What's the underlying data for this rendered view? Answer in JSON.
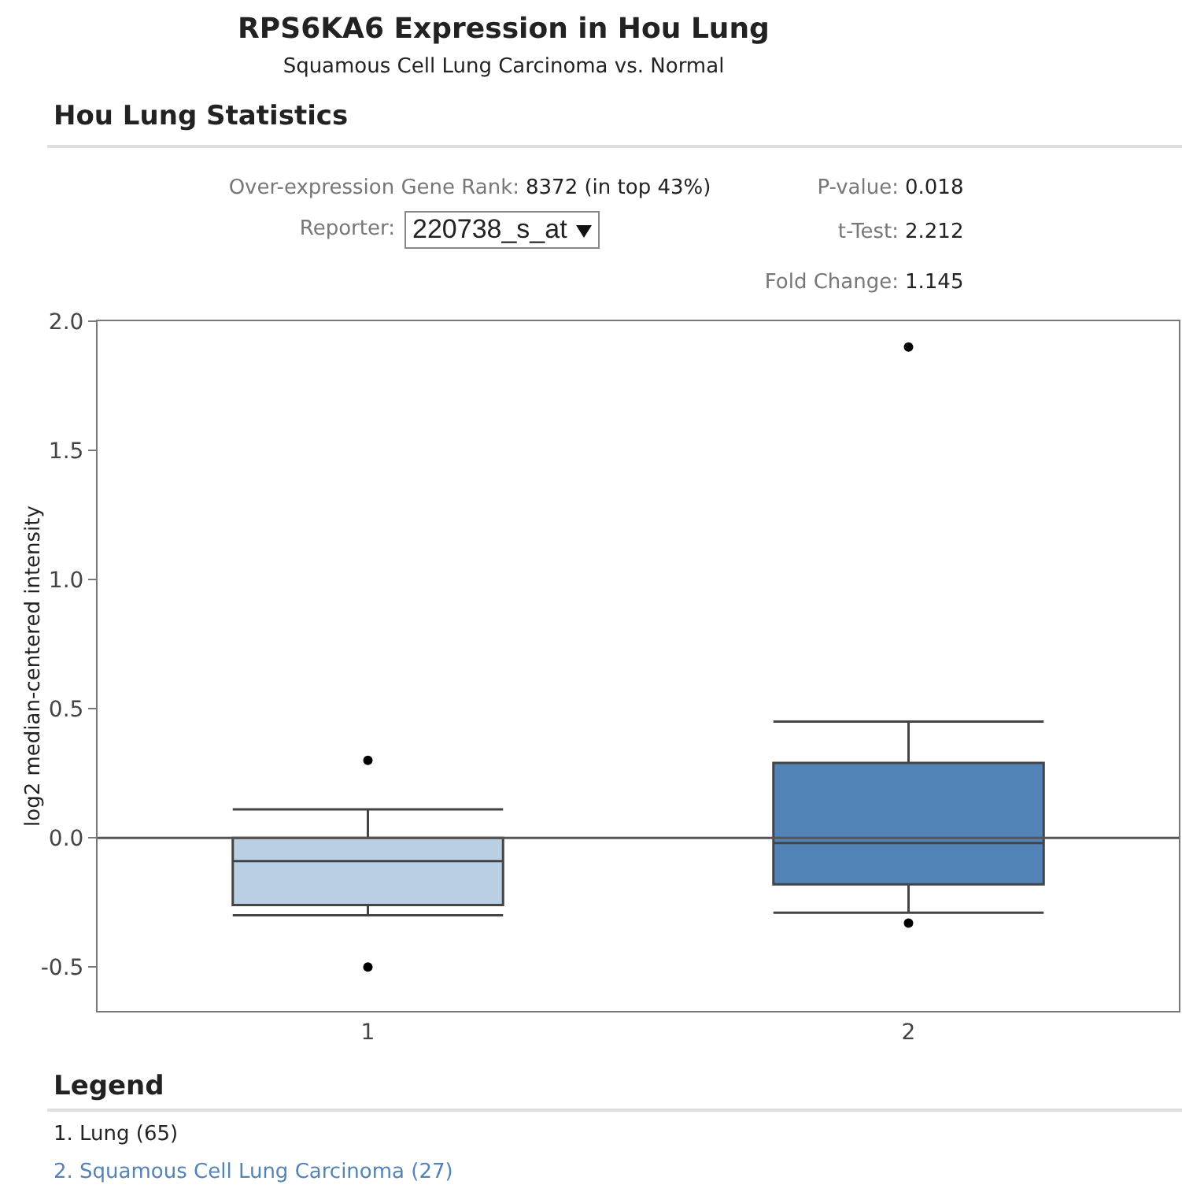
{
  "chart_data": {
    "type": "box",
    "title": "RPS6KA6 Expression in Hou Lung",
    "subtitle": "Squamous Cell Lung Carcinoma vs. Normal",
    "ylabel": "log2 median-centered intensity",
    "categories": [
      "1",
      "2"
    ],
    "colors": [
      "#b9cfe4",
      "#5284b8"
    ],
    "boxes": [
      {
        "low": -0.3,
        "q1": -0.26,
        "median": -0.09,
        "q3": 0.0,
        "high": 0.11,
        "outliers": [
          0.3,
          -0.5
        ]
      },
      {
        "low": -0.29,
        "q1": -0.18,
        "median": -0.02,
        "q3": 0.29,
        "high": 0.45,
        "outliers": [
          1.9,
          -0.33
        ]
      }
    ],
    "ylim": [
      -0.67,
      2.0
    ],
    "yticks": [
      -0.5,
      {
        "value": 0,
        "label": "0.0"
      },
      0.5,
      {
        "value": 1,
        "label": "1.0"
      },
      1.5,
      {
        "value": 2,
        "label": "2.0"
      }
    ],
    "ref_lines": [
      {
        "axis": "y",
        "value": 0,
        "color": "#555555"
      }
    ],
    "annotations": [
      "Hou Lung Statistics",
      "Over-expression Gene Rank:",
      "8372 (in top 43%)",
      "Reporter:",
      "220738_s_at",
      "P-value:",
      "0.018",
      "t-Test:",
      "2.212",
      "Fold Change:",
      "1.145",
      "Legend",
      "1. Lung (65)",
      "2. Squamous Cell Lung Carcinoma (27)"
    ]
  }
}
